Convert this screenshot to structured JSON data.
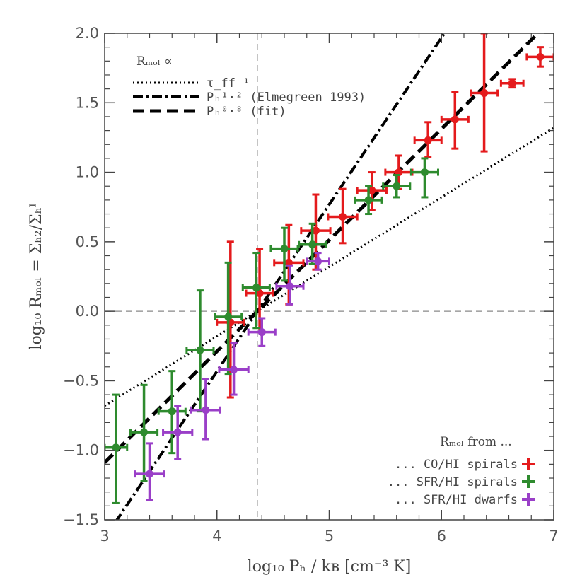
{
  "chart_data": {
    "type": "scatter",
    "xlabel": "log₁₀ Pₕ / kʙ [cm⁻³ K]",
    "ylabel": "log₁₀ Rₘₒₗ = Σₕ₂/Σₕᴵ",
    "xlim": [
      3,
      7
    ],
    "ylim": [
      -1.5,
      2.0
    ],
    "xticks": [
      3,
      4,
      5,
      6,
      7
    ],
    "yticks": [
      -1.5,
      -1.0,
      -0.5,
      0.0,
      0.5,
      1.0,
      1.5,
      2.0
    ],
    "ytick_labels": [
      "−1.5",
      "−1.0",
      "−0.5",
      "0.0",
      "0.5",
      "1.0",
      "1.5",
      "2.0"
    ],
    "reference_lines": {
      "x": 4.36,
      "y": 0.0
    },
    "model_legend": {
      "title": "Rₘₒₗ ∝",
      "entries": [
        {
          "label": "τ_ff⁻¹",
          "style": "dotted"
        },
        {
          "label": "Pₕ¹·² (Elmegreen 1993)",
          "style": "dashdot"
        },
        {
          "label": "Pₕ⁰·⁸ (fit)",
          "style": "dashed"
        }
      ]
    },
    "lines": [
      {
        "name": "tau_ff^-1",
        "style": "dotted",
        "slope": 0.5,
        "x0": 4.36,
        "y0": 0.0,
        "width": 3
      },
      {
        "name": "Ph^1.2 (Elmegreen 1993)",
        "style": "dashdot",
        "slope": 1.2,
        "x0": 4.36,
        "y0": 0.0,
        "width": 4
      },
      {
        "name": "Ph^0.8 (fit)",
        "style": "dashed",
        "slope": 0.8,
        "x0": 4.36,
        "y0": 0.0,
        "width": 5
      }
    ],
    "source_legend": {
      "title": "Rₘₒₗ from ...",
      "entries": [
        {
          "label": "... CO/HI spirals",
          "color": "#e41a1c"
        },
        {
          "label": "... SFR/HI spirals",
          "color": "#2e8b2e"
        },
        {
          "label": "... SFR/HI dwarfs",
          "color": "#9a3fc8"
        }
      ]
    },
    "series": [
      {
        "name": "CO/HI spirals",
        "color": "#e41a1c",
        "points": [
          {
            "x": 4.12,
            "y": -0.08,
            "xerr": 0.12,
            "ylo": -0.62,
            "yhi": 0.5
          },
          {
            "x": 4.38,
            "y": 0.13,
            "xerr": 0.12,
            "ylo": -0.15,
            "yhi": 0.45
          },
          {
            "x": 4.64,
            "y": 0.35,
            "xerr": 0.13,
            "ylo": 0.05,
            "yhi": 0.62
          },
          {
            "x": 4.88,
            "y": 0.58,
            "xerr": 0.13,
            "ylo": 0.3,
            "yhi": 0.84
          },
          {
            "x": 5.12,
            "y": 0.68,
            "xerr": 0.13,
            "ylo": 0.49,
            "yhi": 0.88
          },
          {
            "x": 5.38,
            "y": 0.87,
            "xerr": 0.13,
            "ylo": 0.73,
            "yhi": 1.0
          },
          {
            "x": 5.62,
            "y": 1.0,
            "xerr": 0.12,
            "ylo": 0.88,
            "yhi": 1.12
          },
          {
            "x": 5.88,
            "y": 1.23,
            "xerr": 0.12,
            "ylo": 1.11,
            "yhi": 1.36
          },
          {
            "x": 6.12,
            "y": 1.38,
            "xerr": 0.12,
            "ylo": 1.17,
            "yhi": 1.58
          },
          {
            "x": 6.38,
            "y": 1.57,
            "xerr": 0.12,
            "ylo": 1.15,
            "yhi": 2.0
          },
          {
            "x": 6.63,
            "y": 1.64,
            "xerr": 0.1,
            "ylo": 1.61,
            "yhi": 1.67
          },
          {
            "x": 6.88,
            "y": 1.83,
            "xerr": 0.12,
            "ylo": 1.76,
            "yhi": 1.9
          }
        ]
      },
      {
        "name": "SFR/HI spirals",
        "color": "#2e8b2e",
        "points": [
          {
            "x": 3.1,
            "y": -0.98,
            "xerr": 0.1,
            "ylo": -1.38,
            "yhi": -0.6
          },
          {
            "x": 3.35,
            "y": -0.87,
            "xerr": 0.12,
            "ylo": -1.22,
            "yhi": -0.53
          },
          {
            "x": 3.6,
            "y": -0.72,
            "xerr": 0.12,
            "ylo": -1.02,
            "yhi": -0.43
          },
          {
            "x": 3.85,
            "y": -0.28,
            "xerr": 0.12,
            "ylo": -0.72,
            "yhi": 0.15
          },
          {
            "x": 4.1,
            "y": -0.04,
            "xerr": 0.12,
            "ylo": -0.45,
            "yhi": 0.35
          },
          {
            "x": 4.35,
            "y": 0.17,
            "xerr": 0.12,
            "ylo": -0.12,
            "yhi": 0.42
          },
          {
            "x": 4.6,
            "y": 0.45,
            "xerr": 0.12,
            "ylo": 0.22,
            "yhi": 0.6
          },
          {
            "x": 4.85,
            "y": 0.48,
            "xerr": 0.12,
            "ylo": 0.34,
            "yhi": 0.63
          },
          {
            "x": 5.35,
            "y": 0.8,
            "xerr": 0.12,
            "ylo": 0.7,
            "yhi": 0.9
          },
          {
            "x": 5.6,
            "y": 0.9,
            "xerr": 0.12,
            "ylo": 0.82,
            "yhi": 0.98
          },
          {
            "x": 5.85,
            "y": 1.0,
            "xerr": 0.12,
            "ylo": 0.82,
            "yhi": 1.1
          }
        ]
      },
      {
        "name": "SFR/HI dwarfs",
        "color": "#9a3fc8",
        "points": [
          {
            "x": 3.4,
            "y": -1.17,
            "xerr": 0.13,
            "ylo": -1.36,
            "yhi": -0.95
          },
          {
            "x": 3.65,
            "y": -0.87,
            "xerr": 0.13,
            "ylo": -1.06,
            "yhi": -0.68
          },
          {
            "x": 3.9,
            "y": -0.71,
            "xerr": 0.13,
            "ylo": -0.92,
            "yhi": -0.49
          },
          {
            "x": 4.15,
            "y": -0.42,
            "xerr": 0.13,
            "ylo": -0.6,
            "yhi": -0.23
          },
          {
            "x": 4.4,
            "y": -0.15,
            "xerr": 0.12,
            "ylo": -0.25,
            "yhi": -0.05
          },
          {
            "x": 4.65,
            "y": 0.18,
            "xerr": 0.12,
            "ylo": 0.05,
            "yhi": 0.33
          },
          {
            "x": 4.9,
            "y": 0.36,
            "xerr": 0.1,
            "ylo": 0.3,
            "yhi": 0.42
          }
        ]
      }
    ]
  }
}
